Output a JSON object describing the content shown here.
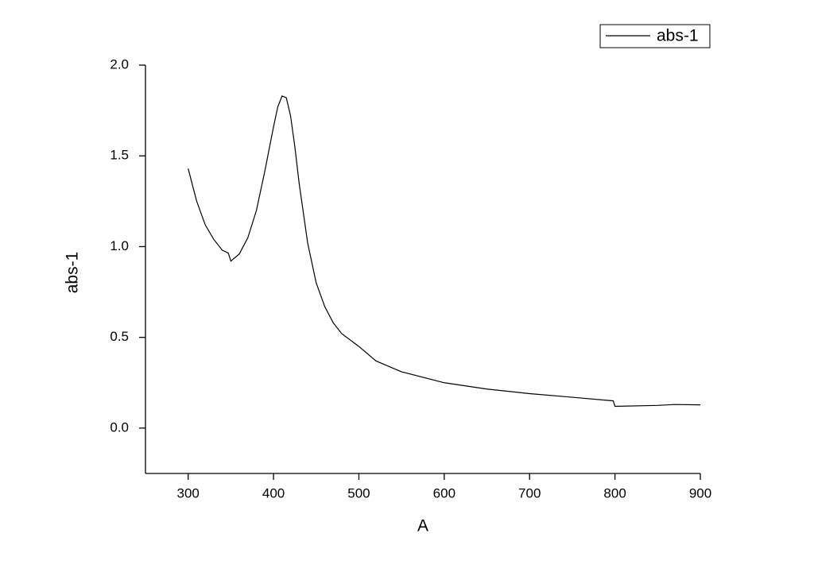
{
  "chart_data": {
    "type": "line",
    "xlabel": "A",
    "ylabel": "abs-1",
    "x": [
      300,
      310,
      320,
      330,
      340,
      347,
      350,
      360,
      370,
      380,
      390,
      400,
      405,
      410,
      415,
      420,
      425,
      430,
      440,
      450,
      460,
      470,
      480,
      500,
      520,
      550,
      600,
      650,
      700,
      750,
      798,
      800,
      850,
      870,
      900
    ],
    "series": [
      {
        "name": "abs-1",
        "color": "#000000",
        "values": [
          1.43,
          1.25,
          1.12,
          1.04,
          0.98,
          0.965,
          0.92,
          0.96,
          1.05,
          1.2,
          1.42,
          1.66,
          1.77,
          1.83,
          1.82,
          1.72,
          1.55,
          1.35,
          1.02,
          0.8,
          0.67,
          0.58,
          0.52,
          0.45,
          0.37,
          0.31,
          0.25,
          0.215,
          0.19,
          0.17,
          0.15,
          0.12,
          0.125,
          0.13,
          0.128
        ]
      }
    ],
    "xlim": [
      250,
      900
    ],
    "xticks": [
      300,
      400,
      500,
      600,
      700,
      800,
      900
    ],
    "ylim": [
      -0.25,
      2.0
    ],
    "yticks": [
      {
        "value": 0,
        "label": "0.0"
      },
      0.5,
      {
        "value": 1,
        "label": "1.0"
      },
      1.5,
      {
        "value": 2,
        "label": "2.0"
      }
    ],
    "legend": "upper right"
  }
}
